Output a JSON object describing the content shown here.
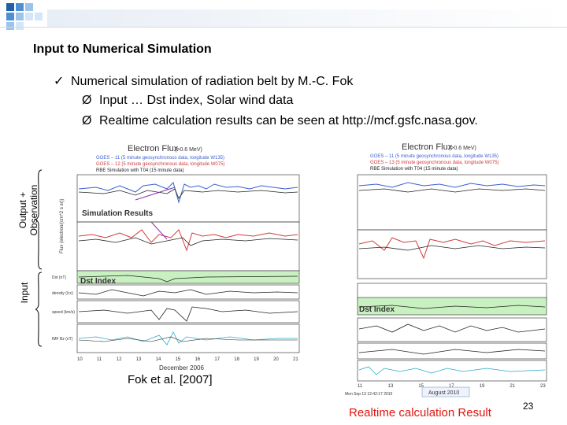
{
  "slide": {
    "title": "Input to Numerical Simulation",
    "bullets": [
      {
        "marker": "✓",
        "text": "Numerical simulation of radiation belt by M.-C. Fok"
      },
      {
        "marker": "Ø",
        "text": "Input … Dst index, Solar wind data"
      },
      {
        "marker": "Ø",
        "text": "Realtime calculation results can be seen at http://mcf.gsfc.nasa.gov."
      }
    ],
    "side_labels": {
      "output_observation_1": "Output +",
      "output_observation_2": "Observation",
      "input": "Input"
    },
    "citation": "Fok et al. [2007]",
    "realtime_caption": "Realtime calculation Result",
    "page_number": "23"
  },
  "left_figure": {
    "title": "Electron Flux",
    "title_unit": "(>0.6 MeV)",
    "legend": [
      {
        "text": "GOES – 11 (5 minute geosynchronous data, longitude W135)",
        "color": "#3a5fcf"
      },
      {
        "text": "GOES – 12 (5 minute geosynchronous data, longitude W075)",
        "color": "#d23a3a"
      },
      {
        "text": "RBE Simulation with T04 (15 minute data)",
        "color": "#222222"
      }
    ],
    "annotation_sim": "Simulation Results",
    "annotation_dst": "Dst Index",
    "x_label": "December 2006",
    "x_ticks": [
      "10",
      "11",
      "12",
      "13",
      "14",
      "15",
      "16",
      "17",
      "18",
      "19",
      "20",
      "21"
    ],
    "y_axis_flux": "Flux (electron/(cm^2 s sr))",
    "panel_labels": [
      "Dst (nT)",
      "density (/cc)",
      "speed (km/s)",
      "IMF Bz (nT)"
    ]
  },
  "right_figure": {
    "title": "Electron Flux",
    "title_unit": "(>0.6 MeV)",
    "legend": [
      {
        "text": "GOES – 11 (5 minute geosynchronous data, longitude W135)",
        "color": "#3a5fcf"
      },
      {
        "text": "GOES – 13 (5 minute geosynchronous data, longitude W075)",
        "color": "#d23a3a"
      },
      {
        "text": "RBE Simulation with T04 (15 minute data)",
        "color": "#222222"
      }
    ],
    "annotation_dst": "Dst Index",
    "x_ticks": [
      "11",
      "13",
      "15",
      "17",
      "19",
      "21",
      "23"
    ],
    "footer_left": "Mon Sep 13 12:42:17 2010",
    "footer_month": "August 2010"
  },
  "colors": {
    "accent_red": "#e0140f",
    "blue_line": "#3a5fcf",
    "red_line": "#d23a3a",
    "green_band": "#c8f0c0",
    "header_blue": "#2b6cb0"
  }
}
